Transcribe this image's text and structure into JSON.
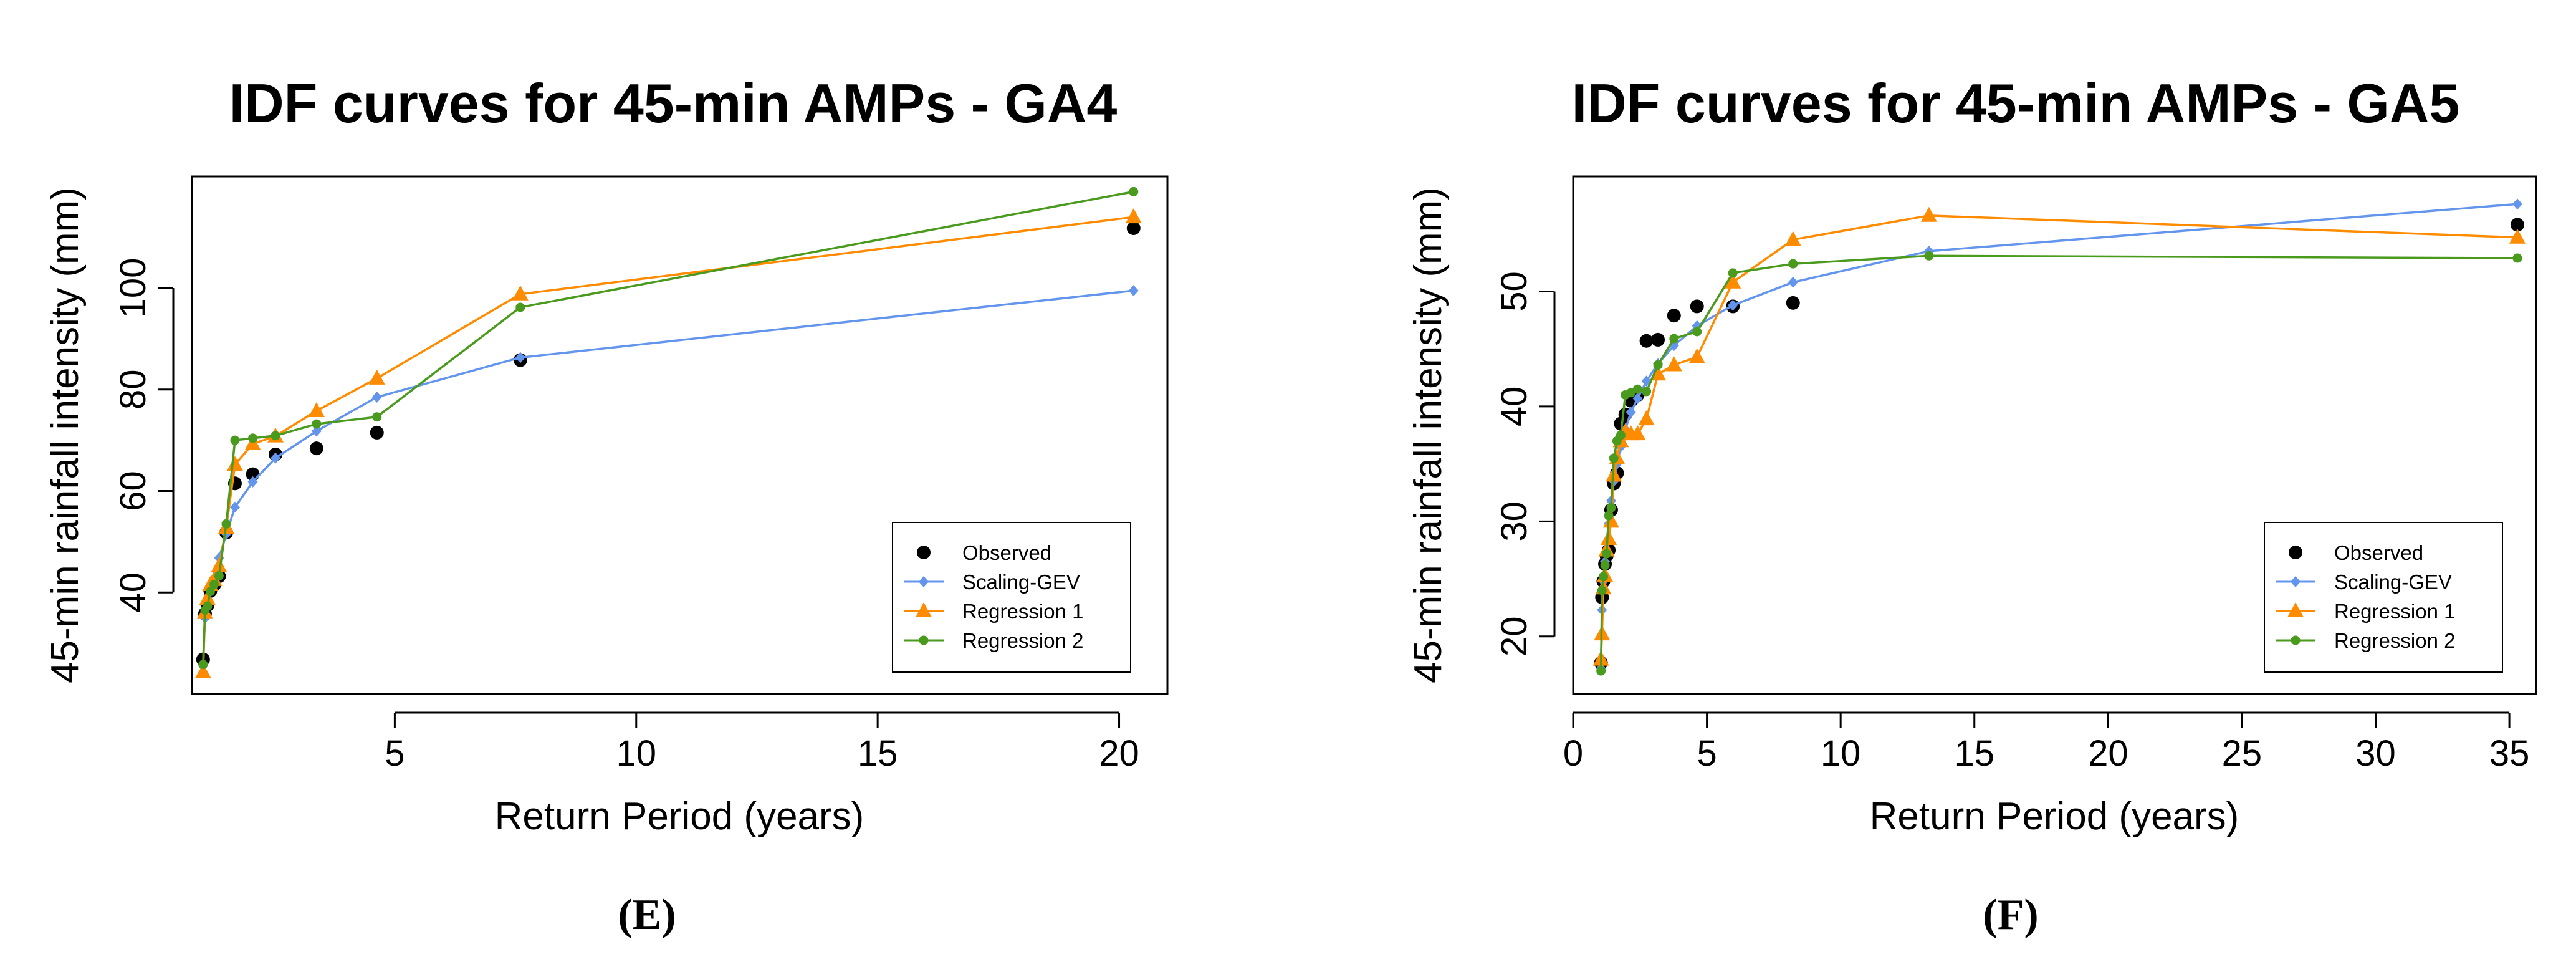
{
  "colors": {
    "observed": "#000000",
    "scaling_gev": "#6495ED",
    "regression_1": "#FF8C00",
    "regression_2": "#4A9A1E"
  },
  "chart_data": [
    {
      "type": "line",
      "title": "IDF curves for 45-min AMPs - GA4",
      "xlabel": "Return Period (years)",
      "ylabel": "45-min rainfall intensity (mm)",
      "caption": "(E)",
      "xlim": [
        0.8,
        21
      ],
      "ylim": [
        20,
        122
      ],
      "xticks": [
        5,
        10,
        15,
        20
      ],
      "yticks": [
        40,
        60,
        80,
        100
      ],
      "legend": "bottom-right",
      "grid": false,
      "series": [
        {
          "name": "Observed",
          "style": "points",
          "marker": "circle",
          "color": "#000000",
          "points": [
            [
              1.03,
              26.8
            ],
            [
              1.07,
              35.8
            ],
            [
              1.12,
              37.5
            ],
            [
              1.18,
              40.3
            ],
            [
              1.26,
              41.5
            ],
            [
              1.36,
              43.2
            ],
            [
              1.51,
              51.8
            ],
            [
              1.69,
              61.5
            ],
            [
              2.06,
              63.3
            ],
            [
              2.53,
              67.2
            ],
            [
              3.38,
              68.4
            ],
            [
              4.63,
              71.5
            ],
            [
              7.6,
              85.8
            ],
            [
              20.3,
              111.8
            ]
          ]
        },
        {
          "name": "Scaling-GEV",
          "style": "line",
          "marker": "diamond",
          "color": "#6495ED",
          "points": [
            [
              1.03,
              25.5
            ],
            [
              1.07,
              35.0
            ],
            [
              1.12,
              37.8
            ],
            [
              1.18,
              40.5
            ],
            [
              1.26,
              42.8
            ],
            [
              1.36,
              46.8
            ],
            [
              1.51,
              51.5
            ],
            [
              1.69,
              56.8
            ],
            [
              2.06,
              61.8
            ],
            [
              2.53,
              66.5
            ],
            [
              3.38,
              71.8
            ],
            [
              4.63,
              78.5
            ],
            [
              7.6,
              86.3
            ],
            [
              20.3,
              99.5
            ]
          ]
        },
        {
          "name": "Regression 1",
          "style": "line",
          "marker": "triangle",
          "color": "#FF8C00",
          "points": [
            [
              1.03,
              24.3
            ],
            [
              1.07,
              36.0
            ],
            [
              1.12,
              38.8
            ],
            [
              1.18,
              41.5
            ],
            [
              1.26,
              42.5
            ],
            [
              1.36,
              45.2
            ],
            [
              1.51,
              52.8
            ],
            [
              1.69,
              65.2
            ],
            [
              2.06,
              69.3
            ],
            [
              2.53,
              70.8
            ],
            [
              3.38,
              75.8
            ],
            [
              4.63,
              82.2
            ],
            [
              7.6,
              98.8
            ],
            [
              20.3,
              114.0
            ]
          ]
        },
        {
          "name": "Regression 2",
          "style": "line",
          "marker": "circle-small",
          "color": "#4A9A1E",
          "points": [
            [
              1.03,
              25.8
            ],
            [
              1.07,
              36.5
            ],
            [
              1.12,
              37.3
            ],
            [
              1.18,
              40.2
            ],
            [
              1.26,
              41.6
            ],
            [
              1.36,
              43.3
            ],
            [
              1.51,
              53.5
            ],
            [
              1.69,
              70.0
            ],
            [
              2.06,
              70.4
            ],
            [
              2.53,
              70.9
            ],
            [
              3.38,
              73.2
            ],
            [
              4.63,
              74.6
            ],
            [
              7.6,
              96.2
            ],
            [
              20.3,
              119.0
            ]
          ]
        }
      ]
    },
    {
      "type": "line",
      "title": "IDF curves for 45-min AMPs - GA5",
      "xlabel": "Return Period (years)",
      "ylabel": "45-min rainfall intensity (mm)",
      "caption": "(F)",
      "xlim": [
        0,
        36
      ],
      "ylim": [
        15,
        60
      ],
      "xticks": [
        0,
        5,
        10,
        15,
        20,
        25,
        30,
        35
      ],
      "yticks": [
        20,
        30,
        40,
        50
      ],
      "legend": "bottom-right",
      "grid": false,
      "series": [
        {
          "name": "Observed",
          "style": "points",
          "marker": "circle",
          "color": "#000000",
          "points": [
            [
              1.04,
              17.7
            ],
            [
              1.08,
              23.4
            ],
            [
              1.13,
              24.8
            ],
            [
              1.19,
              26.3
            ],
            [
              1.25,
              27.0
            ],
            [
              1.33,
              27.5
            ],
            [
              1.42,
              31.0
            ],
            [
              1.52,
              33.3
            ],
            [
              1.64,
              34.2
            ],
            [
              1.78,
              38.5
            ],
            [
              1.95,
              39.3
            ],
            [
              2.16,
              40.5
            ],
            [
              2.41,
              41.0
            ],
            [
              2.74,
              45.7
            ],
            [
              3.17,
              45.8
            ],
            [
              3.77,
              47.9
            ],
            [
              4.63,
              48.7
            ],
            [
              5.97,
              48.7
            ],
            [
              8.22,
              49.0
            ],
            [
              35.3,
              55.8
            ]
          ]
        },
        {
          "name": "Scaling-GEV",
          "style": "line",
          "marker": "diamond",
          "color": "#6495ED",
          "points": [
            [
              1.04,
              17.2
            ],
            [
              1.08,
              22.3
            ],
            [
              1.13,
              24.8
            ],
            [
              1.19,
              26.5
            ],
            [
              1.25,
              28.2
            ],
            [
              1.33,
              29.8
            ],
            [
              1.42,
              31.8
            ],
            [
              1.52,
              33.5
            ],
            [
              1.64,
              35.0
            ],
            [
              1.78,
              36.5
            ],
            [
              1.95,
              38.0
            ],
            [
              2.16,
              39.5
            ],
            [
              2.41,
              40.7
            ],
            [
              2.74,
              42.2
            ],
            [
              3.17,
              43.7
            ],
            [
              3.77,
              45.3
            ],
            [
              4.63,
              47.0
            ],
            [
              5.97,
              48.8
            ],
            [
              8.22,
              50.8
            ],
            [
              13.3,
              53.5
            ],
            [
              35.3,
              57.6
            ]
          ]
        },
        {
          "name": "Regression 1",
          "style": "line",
          "marker": "triangle",
          "color": "#FF8C00",
          "points": [
            [
              1.04,
              18.0
            ],
            [
              1.08,
              20.2
            ],
            [
              1.13,
              24.2
            ],
            [
              1.19,
              25.3
            ],
            [
              1.25,
              27.5
            ],
            [
              1.33,
              28.5
            ],
            [
              1.42,
              30.0
            ],
            [
              1.52,
              34.0
            ],
            [
              1.64,
              35.5
            ],
            [
              1.78,
              37.0
            ],
            [
              1.95,
              37.8
            ],
            [
              2.16,
              37.6
            ],
            [
              2.41,
              37.6
            ],
            [
              2.74,
              38.9
            ],
            [
              3.17,
              42.8
            ],
            [
              3.77,
              43.6
            ],
            [
              4.63,
              44.3
            ],
            [
              5.97,
              50.8
            ],
            [
              8.22,
              54.5
            ],
            [
              13.3,
              56.6
            ],
            [
              35.3,
              54.7
            ]
          ]
        },
        {
          "name": "Regression 2",
          "style": "line",
          "marker": "circle-small",
          "color": "#4A9A1E",
          "points": [
            [
              1.04,
              17.0
            ],
            [
              1.08,
              24.0
            ],
            [
              1.13,
              25.2
            ],
            [
              1.19,
              26.2
            ],
            [
              1.25,
              27.2
            ],
            [
              1.33,
              30.5
            ],
            [
              1.42,
              31.2
            ],
            [
              1.52,
              35.5
            ],
            [
              1.64,
              37.0
            ],
            [
              1.78,
              37.5
            ],
            [
              1.95,
              41.0
            ],
            [
              2.16,
              41.2
            ],
            [
              2.41,
              41.5
            ],
            [
              2.74,
              41.3
            ],
            [
              3.17,
              43.6
            ],
            [
              3.77,
              45.9
            ],
            [
              4.63,
              46.5
            ],
            [
              5.97,
              51.6
            ],
            [
              8.22,
              52.4
            ],
            [
              13.3,
              53.1
            ],
            [
              35.3,
              52.9
            ]
          ]
        }
      ]
    }
  ]
}
